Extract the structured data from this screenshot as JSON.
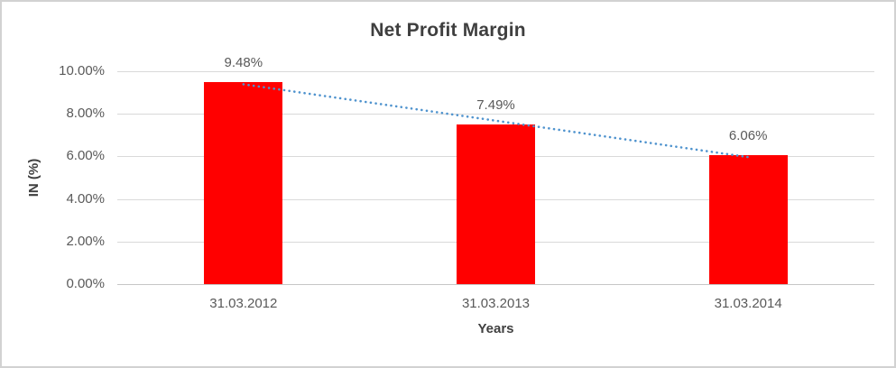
{
  "chart_data": {
    "type": "bar",
    "title": "Net Profit Margin",
    "xlabel": "Years",
    "ylabel": "IN (%)",
    "categories": [
      "31.03.2012",
      "31.03.2013",
      "31.03.2014"
    ],
    "values": [
      9.48,
      7.49,
      6.06
    ],
    "data_labels": [
      "9.48%",
      "7.49%",
      "6.06%"
    ],
    "ylim": [
      0,
      10
    ],
    "ytick_labels_top_to_bottom": [
      "10.00%",
      "8.00%",
      "6.00%",
      "4.00%",
      "2.00%",
      "0.00%"
    ],
    "grid": true,
    "legend": "none",
    "bar_color": "#ff0000",
    "trendline": {
      "type": "linear",
      "style": "dotted",
      "color": "#4f93ce"
    },
    "colors": {
      "gridline": "#d9d9d9",
      "axis_line": "#c6c6c6",
      "title_text": "#3f3f3f",
      "tick_text": "#595959",
      "axis_title_text": "#404040",
      "frame_border": "#d2d2d2"
    }
  }
}
